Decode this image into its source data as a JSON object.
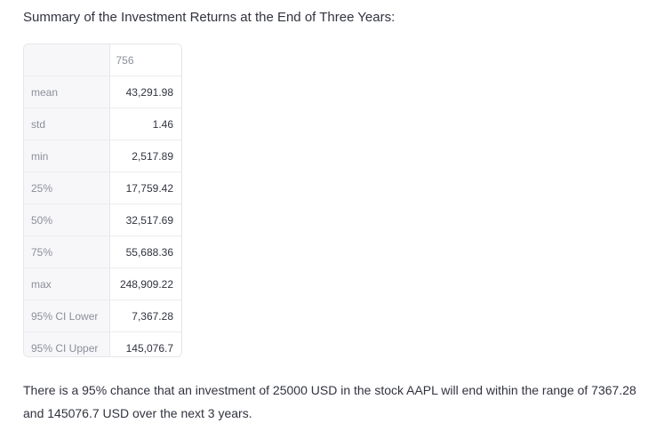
{
  "heading": "Summary of the Investment Returns at the End of Three Years:",
  "table": {
    "column_header": "756",
    "rows": [
      {
        "label": "mean",
        "value": "43,291.98"
      },
      {
        "label": "std",
        "value": "1.46"
      },
      {
        "label": "min",
        "value": "2,517.89"
      },
      {
        "label": "25%",
        "value": "17,759.42"
      },
      {
        "label": "50%",
        "value": "32,517.69"
      },
      {
        "label": "75%",
        "value": "55,688.36"
      },
      {
        "label": "max",
        "value": "248,909.22"
      },
      {
        "label": "95% CI Lower",
        "value": "7,367.28"
      },
      {
        "label": "95% CI Upper",
        "value": "145,076.7"
      }
    ]
  },
  "summary_text": "There is a 95% chance that an investment of 25000 USD in the stock AAPL will end within the range of 7367.28 and 145076.7 USD over the next 3 years."
}
